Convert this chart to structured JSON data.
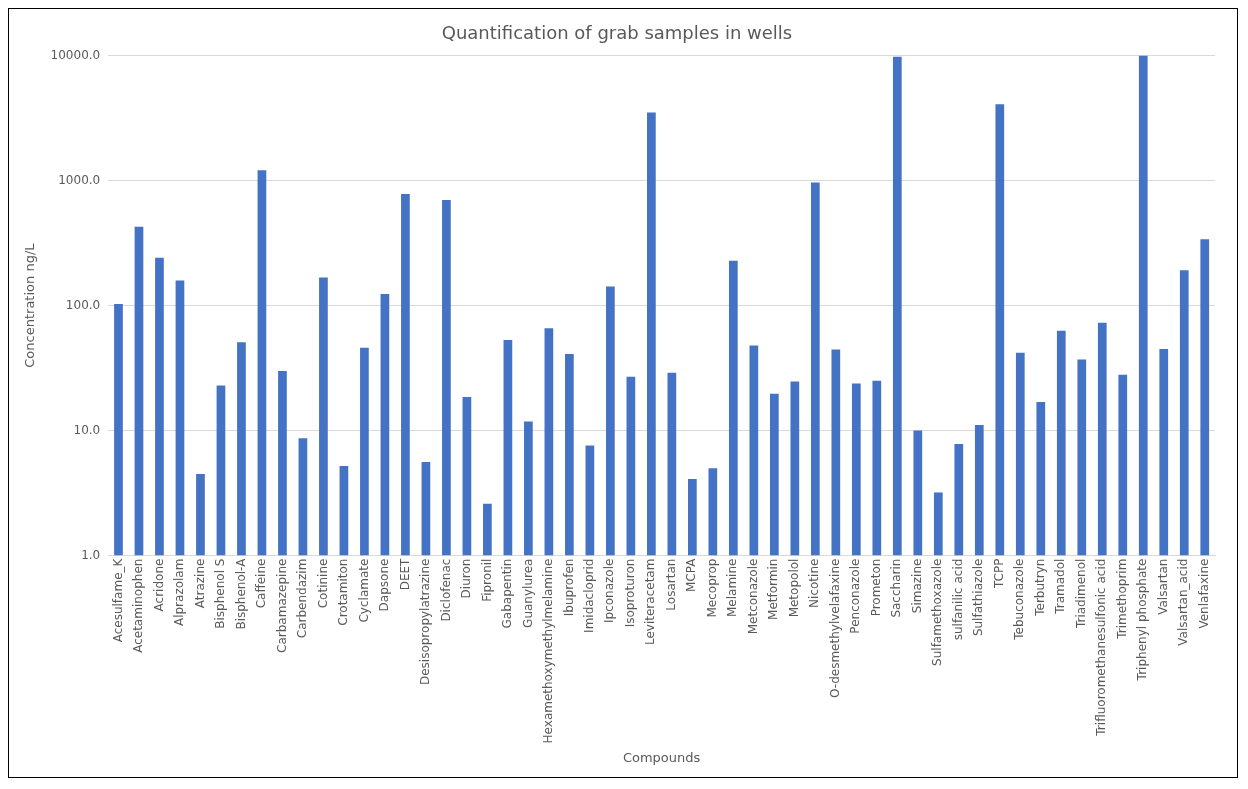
{
  "chart_data": {
    "type": "bar",
    "title": "Quantification of grab samples in wells",
    "xlabel": "Compounds",
    "ylabel": "Concentration ng/L",
    "categories": [
      "Acesulfame_K",
      "Acetaminophen",
      "Acridone",
      "Alprazolam",
      "Atrazine",
      "Bisphenol S",
      "Bisphenol-A",
      "Caffeine",
      "Carbamazepine",
      "Carbendazim",
      "Cotinine",
      "Crotamiton",
      "Cyclamate",
      "Dapsone",
      "DEET",
      "Desisopropylatrazine",
      "Diclofenac",
      "Diuron",
      "Fipronil",
      "Gabapentin",
      "Guanylurea",
      "Hexamethoxymethylmelamine",
      "Ibuprofen",
      "Imidacloprid",
      "Ipconazole",
      "Isoproturon",
      "Leviteracetam",
      "Losartan",
      "MCPA",
      "Mecoprop",
      "Melamine",
      "Metconazole",
      "Metformin",
      "Metopolol",
      "Nicotine",
      "O-desmethylvelafaxine",
      "Penconazole",
      "Prometon",
      "Saccharin",
      "Simazine",
      "Sulfamethoxazole",
      "sulfanilic acid",
      "Sulfathiazole",
      "TCPP",
      "Tebuconazole",
      "Terbutryn",
      "Tramadol",
      "Triadimenol",
      "Trifluoromethanesulfonic acid",
      "Trimethoprim",
      "Triphenyl phosphate",
      "Valsartan",
      "Valsartan_acid",
      "Venlafaxine"
    ],
    "values": [
      103,
      427,
      241,
      159,
      4.5,
      23,
      51,
      1210,
      30,
      8.7,
      168,
      5.2,
      46,
      124,
      780,
      5.6,
      700,
      18.6,
      2.6,
      53,
      11.8,
      66,
      41,
      7.6,
      142,
      27,
      3510,
      29,
      4.1,
      5.0,
      228,
      48,
      19.7,
      24.7,
      965,
      44.5,
      23.8,
      25,
      9800,
      10,
      3.2,
      7.8,
      11.1,
      4080,
      42,
      16.9,
      63,
      37,
      73,
      28,
      10000,
      45,
      192,
      340
    ],
    "color": "#4472c4",
    "log": "y",
    "ylim": [
      1,
      10000
    ],
    "yticks": [
      {
        "value": 1,
        "label": "1.0"
      },
      {
        "value": 10,
        "label": "10.0"
      },
      {
        "value": 100,
        "label": "100.0"
      },
      {
        "value": 1000,
        "label": "1000.0"
      },
      {
        "value": 10000,
        "label": "10000.0"
      }
    ],
    "grid": "y"
  }
}
